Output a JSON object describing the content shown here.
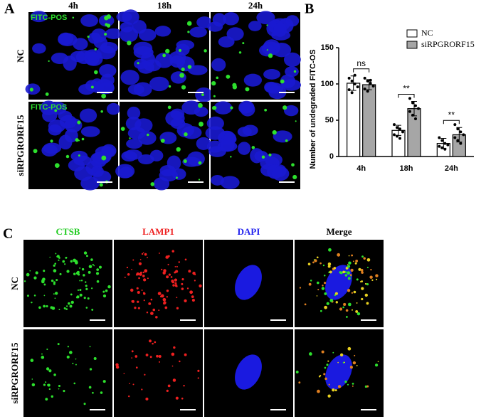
{
  "panel_a": {
    "letter": "A",
    "columns": [
      "4h",
      "18h",
      "24h"
    ],
    "rows": [
      "NC",
      "siRPGRORF15"
    ],
    "stain": "FITC-POS"
  },
  "chart_data": {
    "type": "bar",
    "letter": "B",
    "y_label": "Number of undegraded FITC-OS",
    "categories": [
      "4h",
      "18h",
      "24h"
    ],
    "series": [
      {
        "name": "NC",
        "color": "#ffffff",
        "values": [
          101,
          36,
          18
        ],
        "errors": [
          10,
          7,
          7
        ],
        "points": [
          [
            108,
            104,
            100,
            96,
            92,
            88,
            112
          ],
          [
            44,
            40,
            38,
            34,
            30,
            28,
            25
          ],
          [
            26,
            22,
            18,
            16,
            14,
            12,
            10
          ]
        ]
      },
      {
        "name": "siRPGRORF15",
        "color": "#a6a6a6",
        "values": [
          99,
          66,
          30
        ],
        "errors": [
          7,
          10,
          10
        ],
        "points": [
          [
            108,
            104,
            101,
            97,
            93,
            90,
            105
          ],
          [
            80,
            74,
            70,
            66,
            62,
            57,
            52
          ],
          [
            44,
            38,
            34,
            30,
            26,
            22,
            18
          ]
        ]
      }
    ],
    "annotations": [
      "ns",
      "**",
      "**"
    ],
    "ylim": [
      0,
      150
    ],
    "yticks": [
      0,
      50,
      100,
      150
    ]
  },
  "panel_c": {
    "letter": "C",
    "columns": [
      "CTSB",
      "LAMP1",
      "DAPI",
      "Merge"
    ],
    "column_colors": [
      "#22cc22",
      "#ee2222",
      "#2222ee",
      "#000000"
    ],
    "rows": [
      "NC",
      "siRPGRORF15"
    ]
  }
}
